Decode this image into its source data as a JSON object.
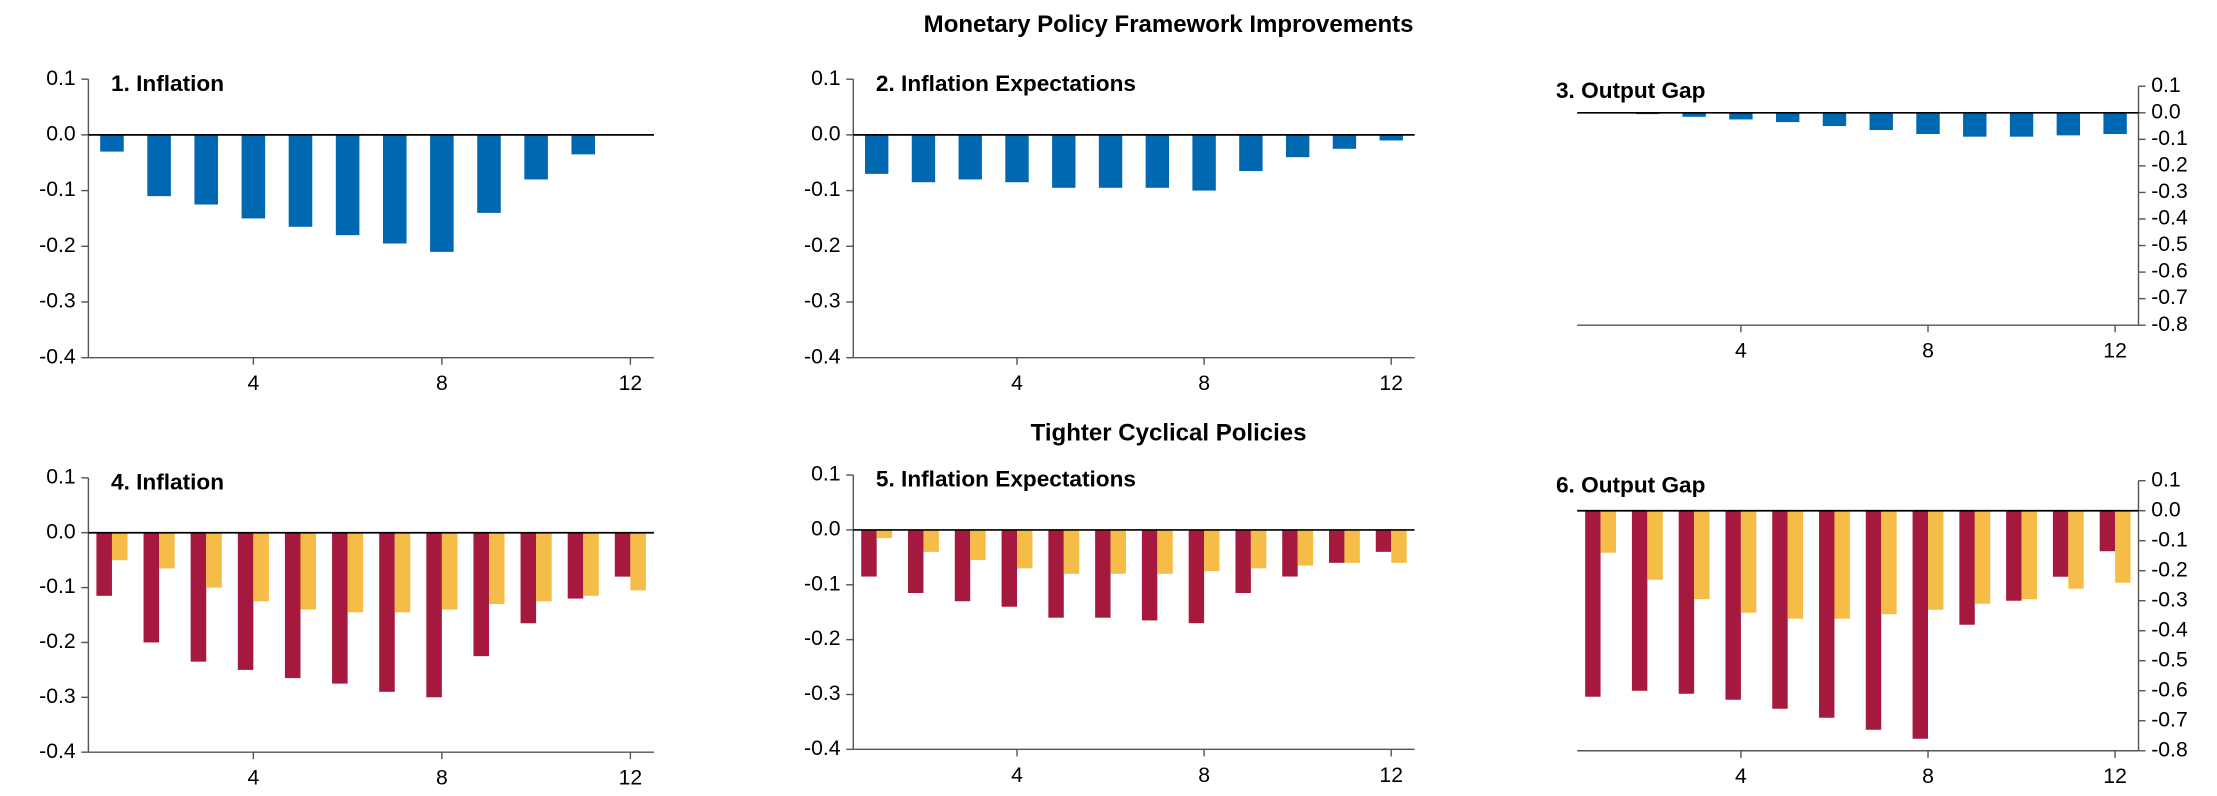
{
  "headings": [
    "Monetary Policy Framework Improvements",
    "Tighter Cyclical Policies"
  ],
  "chart_data": [
    {
      "type": "bar",
      "title": "1. Inflation",
      "x": [
        1,
        2,
        3,
        4,
        5,
        6,
        7,
        8,
        9,
        10,
        11,
        12
      ],
      "xlim": [
        0.5,
        12.5
      ],
      "xticks": [
        4,
        8,
        12
      ],
      "ylim": [
        -0.4,
        0.1
      ],
      "yticks": [
        0.1,
        {
          "value": 0,
          "label": "0.0"
        },
        -0.1,
        -0.2,
        -0.3,
        -0.4
      ],
      "y_axis_side": "left",
      "series": [
        {
          "color": "#0067b1",
          "values": [
            -0.03,
            -0.11,
            -0.125,
            -0.15,
            -0.165,
            -0.18,
            -0.195,
            -0.21,
            -0.14,
            -0.08,
            -0.035,
            0
          ]
        }
      ]
    },
    {
      "type": "bar",
      "title": "2. Inflation Expectations",
      "x": [
        1,
        2,
        3,
        4,
        5,
        6,
        7,
        8,
        9,
        10,
        11,
        12
      ],
      "xlim": [
        0.5,
        12.5
      ],
      "xticks": [
        4,
        8,
        12
      ],
      "ylim": [
        -0.4,
        0.1
      ],
      "yticks": [
        0.1,
        {
          "value": 0,
          "label": "0.0"
        },
        -0.1,
        -0.2,
        -0.3,
        -0.4
      ],
      "y_axis_side": "left",
      "series": [
        {
          "color": "#0067b1",
          "values": [
            -0.07,
            -0.085,
            -0.08,
            -0.085,
            -0.095,
            -0.095,
            -0.095,
            -0.1,
            -0.065,
            -0.04,
            -0.025,
            -0.01
          ]
        }
      ]
    },
    {
      "type": "bar",
      "title": "3. Output Gap",
      "x": [
        1,
        2,
        3,
        4,
        5,
        6,
        7,
        8,
        9,
        10,
        11,
        12
      ],
      "xlim": [
        0.5,
        12.5
      ],
      "xticks": [
        4,
        8,
        12
      ],
      "ylim": [
        -0.8,
        0.1
      ],
      "yticks": [
        0.1,
        {
          "value": 0,
          "label": "0.0"
        },
        -0.1,
        -0.2,
        -0.3,
        -0.4,
        -0.5,
        -0.6,
        -0.7,
        -0.8
      ],
      "y_axis_side": "right",
      "series": [
        {
          "color": "#0067b1",
          "values": [
            0,
            -0.005,
            -0.015,
            -0.025,
            -0.035,
            -0.05,
            -0.065,
            -0.08,
            -0.09,
            -0.09,
            -0.085,
            -0.08
          ]
        }
      ]
    },
    {
      "type": "bar",
      "title": "4. Inflation",
      "x": [
        1,
        2,
        3,
        4,
        5,
        6,
        7,
        8,
        9,
        10,
        11,
        12
      ],
      "xlim": [
        0.5,
        12.5
      ],
      "xticks": [
        4,
        8,
        12
      ],
      "ylim": [
        -0.4,
        0.1
      ],
      "yticks": [
        0.1,
        {
          "value": 0,
          "label": "0.0"
        },
        -0.1,
        -0.2,
        -0.3,
        -0.4
      ],
      "y_axis_side": "left",
      "series": [
        {
          "color": "#a6193e",
          "values": [
            -0.115,
            -0.2,
            -0.235,
            -0.25,
            -0.265,
            -0.275,
            -0.29,
            -0.3,
            -0.225,
            -0.165,
            -0.12,
            -0.08
          ]
        },
        {
          "color": "#f5bd47",
          "values": [
            -0.05,
            -0.065,
            -0.1,
            -0.125,
            -0.14,
            -0.145,
            -0.145,
            -0.14,
            -0.13,
            -0.125,
            -0.115,
            -0.105
          ]
        }
      ]
    },
    {
      "type": "bar",
      "title": "5. Inflation Expectations",
      "x": [
        1,
        2,
        3,
        4,
        5,
        6,
        7,
        8,
        9,
        10,
        11,
        12
      ],
      "xlim": [
        0.5,
        12.5
      ],
      "xticks": [
        4,
        8,
        12
      ],
      "ylim": [
        -0.4,
        0.1
      ],
      "yticks": [
        0.1,
        {
          "value": 0,
          "label": "0.0"
        },
        -0.1,
        -0.2,
        -0.3,
        -0.4
      ],
      "y_axis_side": "left",
      "series": [
        {
          "color": "#a6193e",
          "values": [
            -0.085,
            -0.115,
            -0.13,
            -0.14,
            -0.16,
            -0.16,
            -0.165,
            -0.17,
            -0.115,
            -0.085,
            -0.06,
            -0.04
          ]
        },
        {
          "color": "#f5bd47",
          "values": [
            -0.015,
            -0.04,
            -0.055,
            -0.07,
            -0.08,
            -0.08,
            -0.08,
            -0.075,
            -0.07,
            -0.065,
            -0.06,
            -0.06
          ]
        }
      ]
    },
    {
      "type": "bar",
      "title": "6. Output Gap",
      "x": [
        1,
        2,
        3,
        4,
        5,
        6,
        7,
        8,
        9,
        10,
        11,
        12
      ],
      "xlim": [
        0.5,
        12.5
      ],
      "xticks": [
        4,
        8,
        12
      ],
      "ylim": [
        -0.8,
        0.1
      ],
      "yticks": [
        0.1,
        {
          "value": 0,
          "label": "0.0"
        },
        -0.1,
        -0.2,
        -0.3,
        -0.4,
        -0.5,
        -0.6,
        -0.7,
        -0.8
      ],
      "y_axis_side": "right",
      "series": [
        {
          "color": "#a6193e",
          "values": [
            -0.62,
            -0.6,
            -0.61,
            -0.63,
            -0.66,
            -0.69,
            -0.73,
            -0.76,
            -0.38,
            -0.3,
            -0.22,
            -0.135
          ]
        },
        {
          "color": "#f5bd47",
          "values": [
            -0.14,
            -0.23,
            -0.295,
            -0.34,
            -0.36,
            -0.36,
            -0.345,
            -0.33,
            -0.31,
            -0.295,
            -0.26,
            -0.24
          ]
        }
      ]
    }
  ]
}
